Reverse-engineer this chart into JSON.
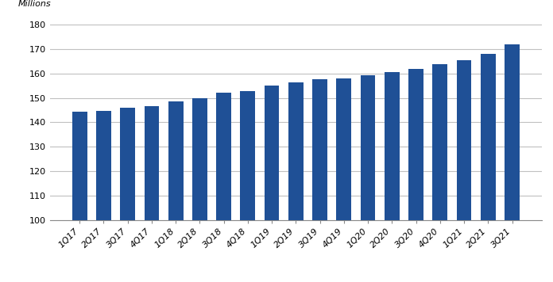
{
  "categories": [
    "1Q17",
    "2Q17",
    "3Q17",
    "4Q17",
    "1Q18",
    "2Q18",
    "3Q18",
    "4Q18",
    "1Q19",
    "2Q19",
    "3Q19",
    "4Q19",
    "1Q20",
    "2Q20",
    "3Q20",
    "4Q20",
    "1Q21",
    "2Q21",
    "3Q21"
  ],
  "values": [
    144.3,
    144.8,
    146.0,
    146.5,
    148.7,
    149.9,
    152.0,
    152.9,
    155.1,
    156.2,
    157.5,
    158.1,
    159.2,
    160.5,
    161.8,
    163.7,
    165.3,
    167.9,
    172.0
  ],
  "bar_color": "#1F5096",
  "ylim": [
    100,
    182
  ],
  "yticks": [
    100,
    110,
    120,
    130,
    140,
    150,
    160,
    170,
    180
  ],
  "ylabel": "Millions",
  "background_color": "#ffffff",
  "grid_color": "#c0c0c0",
  "tick_label_fontsize": 8,
  "ylabel_fontsize": 8,
  "legend_fontsize": 9
}
